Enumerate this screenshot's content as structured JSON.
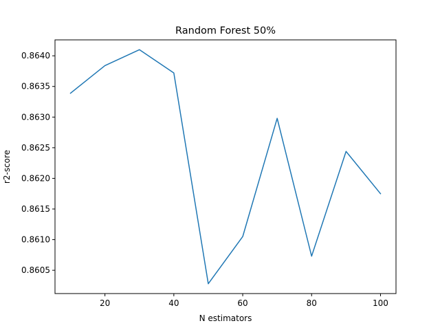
{
  "chart_data": {
    "type": "line",
    "title": "Random Forest 50%",
    "xlabel": "N estimators",
    "ylabel": "r2-score",
    "x": [
      10,
      20,
      30,
      40,
      50,
      60,
      70,
      80,
      90,
      100
    ],
    "series": [
      {
        "color": "#1f77b4",
        "values": [
          0.86339,
          0.86384,
          0.8641,
          0.86372,
          0.86028,
          0.86105,
          0.86298,
          0.86073,
          0.86244,
          0.86175
        ]
      }
    ],
    "xlim": [
      5.5,
      104.5
    ],
    "ylim": [
      0.86012,
      0.86426
    ],
    "xticks": [
      20,
      40,
      60,
      80,
      100
    ],
    "xtick_labels": [
      "20",
      "40",
      "60",
      "80",
      "100"
    ],
    "yticks": [
      0.8605,
      0.861,
      0.8615,
      0.862,
      0.8625,
      0.863,
      0.8635,
      0.864
    ],
    "ytick_labels": [
      "0.8605",
      "0.8610",
      "0.8615",
      "0.8620",
      "0.8625",
      "0.8630",
      "0.8635",
      "0.8640"
    ],
    "grid": false,
    "legend": "none"
  }
}
